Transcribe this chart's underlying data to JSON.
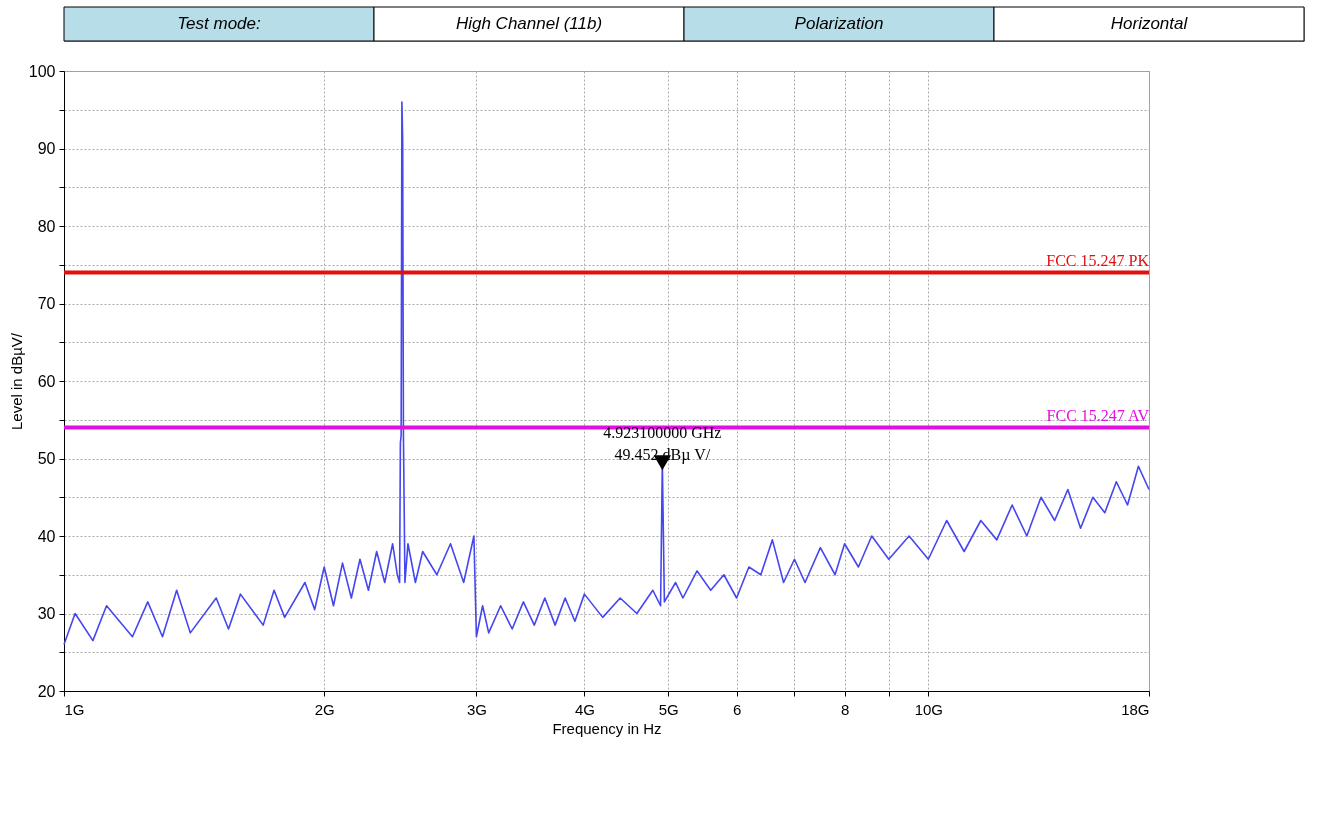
{
  "chart_data": {
    "type": "line",
    "annotations": [
      "Test mode:",
      "High Channel (11b)",
      "Polarization",
      "Horizontal",
      {
        "text": "4.923100000 GHz\n49.452 dBµ V/",
        "x": 4.9231,
        "y": 49.452
      }
    ],
    "xlabel": "Frequency in Hz",
    "ylabel": "Level in dBµV/",
    "log": "x",
    "xlim": [
      1,
      18
    ],
    "xticks": [
      {
        "value": 1,
        "label": "1G"
      },
      {
        "value": 2,
        "label": "2G"
      },
      {
        "value": 3,
        "label": "3G"
      },
      {
        "value": 4,
        "label": "4G"
      },
      {
        "value": 5,
        "label": "5G"
      },
      6,
      {
        "value": 7,
        "label": null
      },
      8,
      {
        "value": 9,
        "label": null
      },
      {
        "value": 10,
        "label": "10G"
      },
      {
        "value": 18,
        "label": "18G"
      }
    ],
    "ylim": [
      20,
      100
    ],
    "yticks": [
      20,
      {
        "value": 25,
        "label": null
      },
      30,
      {
        "value": 35,
        "label": null
      },
      40,
      {
        "value": 45,
        "label": null
      },
      50,
      {
        "value": 55,
        "label": null
      },
      60,
      {
        "value": 65,
        "label": null
      },
      70,
      {
        "value": 75,
        "label": null
      },
      80,
      {
        "value": 85,
        "label": null
      },
      90,
      {
        "value": 95,
        "label": null
      },
      100
    ],
    "grid": true,
    "legend": false,
    "series": [
      {
        "color": "#4646f0",
        "line_style": "solid",
        "marker": "none",
        "x": [
          1.0,
          1.03,
          1.08,
          1.12,
          1.2,
          1.25,
          1.3,
          1.35,
          1.4,
          1.5,
          1.55,
          1.6,
          1.7,
          1.75,
          1.8,
          1.9,
          1.95,
          2.0,
          2.05,
          2.1,
          2.15,
          2.2,
          2.25,
          2.3,
          2.35,
          2.4,
          2.43,
          2.445,
          2.45,
          2.455,
          2.46,
          2.465,
          2.47,
          2.48,
          2.5,
          2.55,
          2.6,
          2.7,
          2.8,
          2.9,
          2.98,
          3.0,
          3.05,
          3.1,
          3.2,
          3.3,
          3.4,
          3.5,
          3.6,
          3.7,
          3.8,
          3.9,
          4.0,
          4.2,
          4.4,
          4.6,
          4.8,
          4.9,
          4.9231,
          4.95,
          5.1,
          5.2,
          5.4,
          5.6,
          5.8,
          6.0,
          6.2,
          6.4,
          6.6,
          6.8,
          7.0,
          7.2,
          7.5,
          7.8,
          8.0,
          8.3,
          8.6,
          9.0,
          9.5,
          10,
          10.5,
          11,
          11.5,
          12,
          12.5,
          13,
          13.5,
          14,
          14.5,
          15,
          15.5,
          16,
          16.5,
          17,
          17.5,
          18
        ],
        "values": [
          26,
          30,
          26.5,
          31,
          27,
          31.5,
          27,
          33,
          27.5,
          32,
          28,
          32.5,
          28.5,
          33,
          29.5,
          34,
          30.5,
          36,
          31,
          36.5,
          32,
          37,
          33,
          38,
          34,
          39,
          35,
          34,
          52,
          53,
          96,
          91,
          53,
          34,
          39,
          34,
          38,
          35,
          39,
          34,
          40,
          27,
          31,
          27.5,
          31,
          28,
          31.5,
          28.5,
          32,
          28.5,
          32,
          29,
          32.5,
          29.5,
          32,
          30,
          33,
          31,
          49.452,
          31.5,
          34,
          32,
          35.5,
          33,
          35,
          32,
          36,
          35,
          39.5,
          34,
          37,
          34,
          38.5,
          35,
          39,
          36,
          40,
          37,
          40,
          37,
          42,
          38,
          42,
          39.5,
          44,
          40,
          45,
          42,
          46,
          41,
          45,
          43,
          47,
          44,
          49,
          46
        ]
      },
      {
        "type": "scatter",
        "color": "#000000",
        "marker": "triangle",
        "x": [
          4.9231
        ],
        "values": [
          49.452
        ]
      }
    ],
    "ref_lines": [
      {
        "axis": "y",
        "value": 74,
        "label": "FCC 15.247 PK",
        "color": "#e01010"
      },
      {
        "axis": "y",
        "value": 54,
        "label": "FCC 15.247 AV",
        "color": "#e010e0"
      }
    ]
  }
}
